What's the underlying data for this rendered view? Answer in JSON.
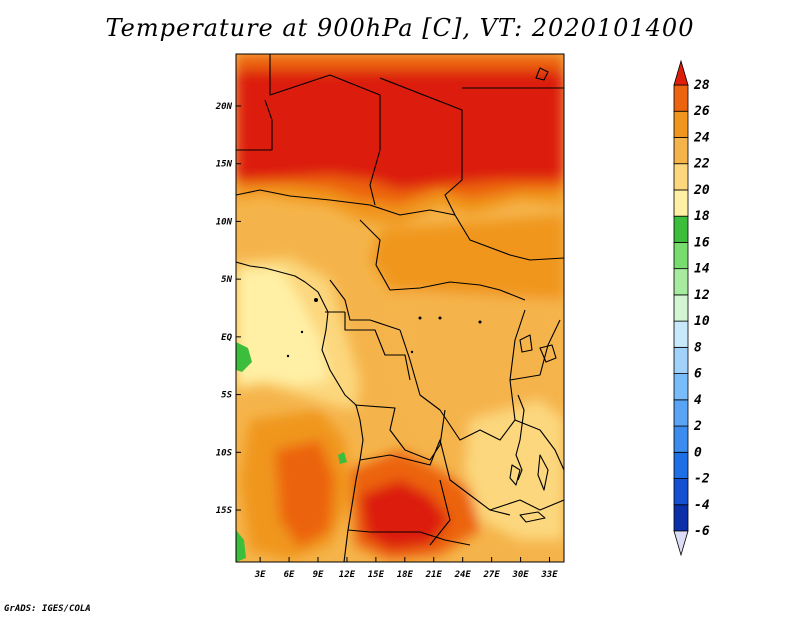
{
  "title": "Temperature at 900hPa [C], VT: 2020101400",
  "credit": "GrADS: IGES/COLA",
  "map": {
    "lon_labels": [
      "3E",
      "6E",
      "9E",
      "12E",
      "15E",
      "18E",
      "21E",
      "24E",
      "27E",
      "30E",
      "33E"
    ],
    "lon_values": [
      3,
      6,
      9,
      12,
      15,
      18,
      21,
      24,
      27,
      30,
      33
    ],
    "lat_labels": [
      "20N",
      "15N",
      "10N",
      "5N",
      "EQ",
      "5S",
      "10S",
      "15S"
    ],
    "lat_values": [
      20,
      15,
      10,
      5,
      0,
      -5,
      -10,
      -15
    ],
    "lon_range": [
      0.5,
      34.5
    ],
    "lat_range": [
      -19.5,
      24.5
    ]
  },
  "colorbar": {
    "labels": [
      "28",
      "26",
      "24",
      "22",
      "20",
      "18",
      "16",
      "14",
      "12",
      "10",
      "8",
      "6",
      "4",
      "2",
      "0",
      "-2",
      "-4",
      "-6"
    ],
    "bins": [
      {
        "color": "#0a0a6e",
        "range": "< -6"
      },
      {
        "color": "#0b2fa8",
        "range": "-6 to -4"
      },
      {
        "color": "#1650d2",
        "range": "-4 to -2"
      },
      {
        "color": "#1e6ee6",
        "range": "-2 to 0"
      },
      {
        "color": "#3c8cf0",
        "range": "0 to 2"
      },
      {
        "color": "#5aa4f5",
        "range": "2 to 4"
      },
      {
        "color": "#78bcfa",
        "range": "4 to 6"
      },
      {
        "color": "#a0d2fc",
        "range": "6 to 8"
      },
      {
        "color": "#c8e8fc",
        "range": "8 to 10"
      },
      {
        "color": "#d2f5d2",
        "range": "10 to 12"
      },
      {
        "color": "#a6eba0",
        "range": "12 to 14"
      },
      {
        "color": "#78dc6e",
        "range": "14 to 16"
      },
      {
        "color": "#3cbe3c",
        "range": "16 to 18"
      },
      {
        "color": "#fff0a5",
        "range": "18 to 20"
      },
      {
        "color": "#fcd77d",
        "range": "20 to 22"
      },
      {
        "color": "#f5b44b",
        "range": "22 to 24"
      },
      {
        "color": "#f0961e",
        "range": "24 to 26"
      },
      {
        "color": "#ec6410",
        "range": "26 to 28"
      },
      {
        "color": "#dc1e0a",
        "range": "> 28"
      }
    ]
  }
}
